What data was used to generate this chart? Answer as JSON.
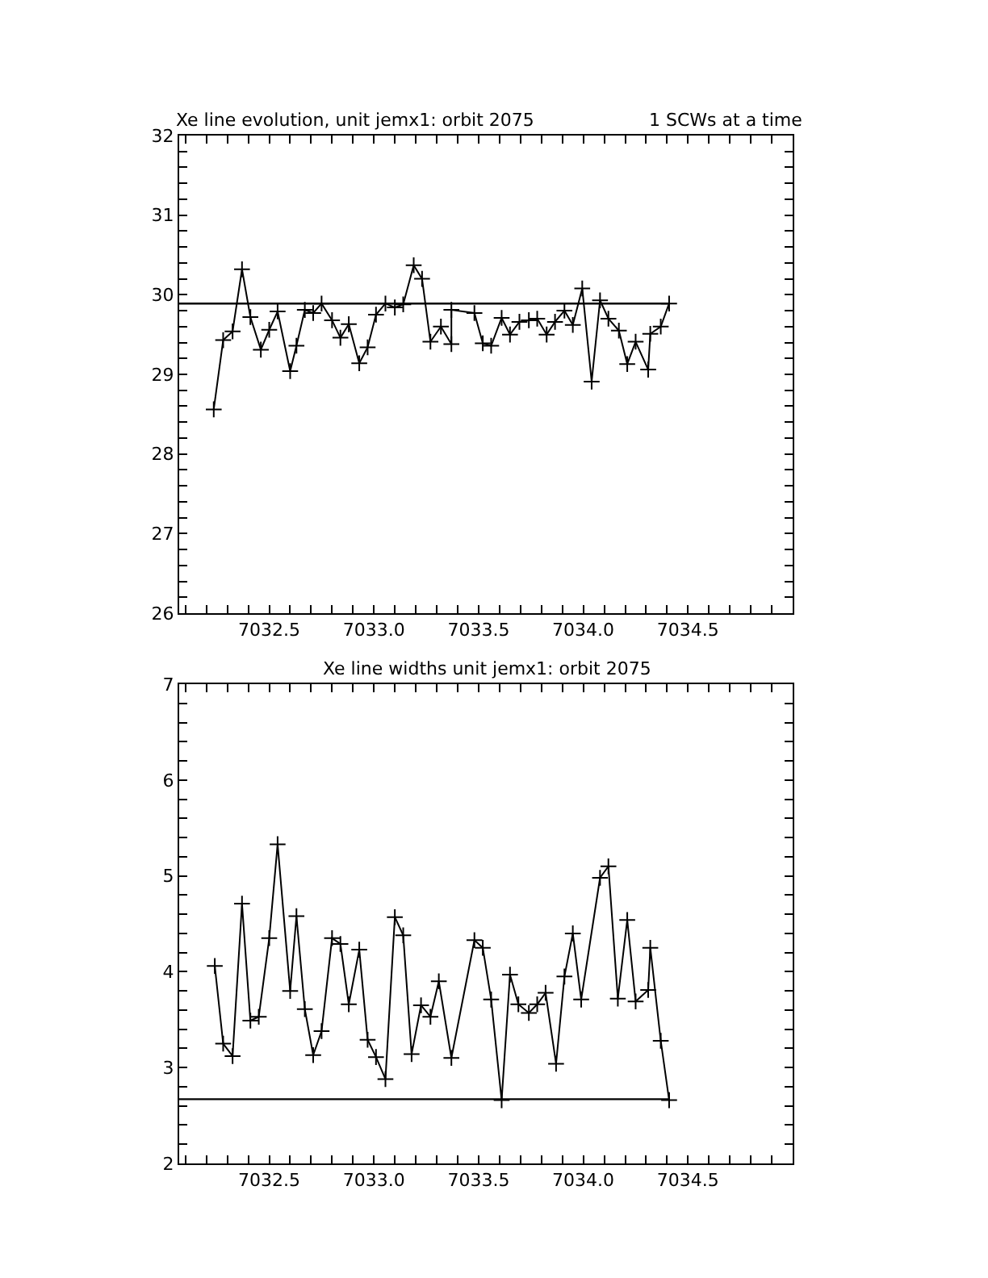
{
  "chart_data": [
    {
      "type": "line",
      "title": "Xe line evolution, unit jemx1: orbit 2075",
      "subtitle": "1 SCWs at a time",
      "marker": "cross",
      "line_style": "solid",
      "x": [
        7032.235,
        7032.28,
        7032.325,
        7032.37,
        7032.41,
        7032.46,
        7032.5,
        7032.54,
        7032.6,
        7032.63,
        7032.67,
        7032.71,
        7032.75,
        7032.8,
        7032.84,
        7032.88,
        7032.93,
        7032.97,
        7033.01,
        7033.055,
        7033.1,
        7033.14,
        7033.19,
        7033.23,
        7033.27,
        7033.32,
        7033.37,
        7033.37,
        7033.48,
        7033.52,
        7033.56,
        7033.61,
        7033.65,
        7033.695,
        7033.74,
        7033.78,
        7033.825,
        7033.865,
        7033.91,
        7033.95,
        7033.995,
        7034.04,
        7034.08,
        7034.12,
        7034.17,
        7034.21,
        7034.25,
        7034.31,
        7034.32,
        7034.37,
        7034.41
      ],
      "series": [
        {
          "color": "#000000",
          "values": [
            28.56,
            29.43,
            29.54,
            30.32,
            29.72,
            29.31,
            29.56,
            29.79,
            29.04,
            29.36,
            29.81,
            29.77,
            29.89,
            29.68,
            29.46,
            29.63,
            29.14,
            29.34,
            29.75,
            29.89,
            29.84,
            29.88,
            30.37,
            30.2,
            29.41,
            29.6,
            29.38,
            29.81,
            29.77,
            29.39,
            29.36,
            29.71,
            29.5,
            29.66,
            29.68,
            29.7,
            29.5,
            29.66,
            29.8,
            29.62,
            30.08,
            28.91,
            29.93,
            29.7,
            29.55,
            29.13,
            29.41,
            29.06,
            29.51,
            29.6,
            29.89
          ]
        }
      ],
      "ref_lines": [
        {
          "axis": "y",
          "value": 29.89,
          "color": "#000000"
        }
      ],
      "xlim": [
        7032.07,
        7035.0
      ],
      "xticks": [
        {
          "value": 7032.1,
          "label": null
        },
        {
          "value": 7032.2,
          "label": null
        },
        {
          "value": 7032.3,
          "label": null
        },
        {
          "value": 7032.4,
          "label": null
        },
        {
          "value": 7032.5,
          "label": "7032.5"
        },
        {
          "value": 7032.6,
          "label": null
        },
        {
          "value": 7032.7,
          "label": null
        },
        {
          "value": 7032.8,
          "label": null
        },
        {
          "value": 7032.9,
          "label": null
        },
        {
          "value": 7033.0,
          "label": "7033.0"
        },
        {
          "value": 7033.1,
          "label": null
        },
        {
          "value": 7033.2,
          "label": null
        },
        {
          "value": 7033.3,
          "label": null
        },
        {
          "value": 7033.4,
          "label": null
        },
        {
          "value": 7033.5,
          "label": "7033.5"
        },
        {
          "value": 7033.6,
          "label": null
        },
        {
          "value": 7033.7,
          "label": null
        },
        {
          "value": 7033.8,
          "label": null
        },
        {
          "value": 7033.9,
          "label": null
        },
        {
          "value": 7034.0,
          "label": "7034.0"
        },
        {
          "value": 7034.1,
          "label": null
        },
        {
          "value": 7034.2,
          "label": null
        },
        {
          "value": 7034.3,
          "label": null
        },
        {
          "value": 7034.4,
          "label": null
        },
        {
          "value": 7034.5,
          "label": "7034.5"
        },
        {
          "value": 7034.6,
          "label": null
        },
        {
          "value": 7034.7,
          "label": null
        },
        {
          "value": 7034.8,
          "label": null
        },
        {
          "value": 7034.9,
          "label": null
        }
      ],
      "ylim": [
        26,
        32
      ],
      "yticks": [
        26,
        {
          "value": 26.2,
          "label": null
        },
        {
          "value": 26.4,
          "label": null
        },
        {
          "value": 26.6,
          "label": null
        },
        {
          "value": 26.8,
          "label": null
        },
        27,
        {
          "value": 27.2,
          "label": null
        },
        {
          "value": 27.4,
          "label": null
        },
        {
          "value": 27.6,
          "label": null
        },
        {
          "value": 27.8,
          "label": null
        },
        28,
        {
          "value": 28.2,
          "label": null
        },
        {
          "value": 28.4,
          "label": null
        },
        {
          "value": 28.6,
          "label": null
        },
        {
          "value": 28.8,
          "label": null
        },
        29,
        {
          "value": 29.2,
          "label": null
        },
        {
          "value": 29.4,
          "label": null
        },
        {
          "value": 29.6,
          "label": null
        },
        {
          "value": 29.8,
          "label": null
        },
        30,
        {
          "value": 30.2,
          "label": null
        },
        {
          "value": 30.4,
          "label": null
        },
        {
          "value": 30.6,
          "label": null
        },
        {
          "value": 30.8,
          "label": null
        },
        31,
        {
          "value": 31.2,
          "label": null
        },
        {
          "value": 31.4,
          "label": null
        },
        {
          "value": 31.6,
          "label": null
        },
        {
          "value": 31.8,
          "label": null
        },
        32
      ]
    },
    {
      "type": "line",
      "title": "Xe line widths unit jemx1: orbit 2075",
      "marker": "cross",
      "line_style": "solid",
      "x": [
        7032.24,
        7032.28,
        7032.325,
        7032.37,
        7032.41,
        7032.45,
        7032.5,
        7032.54,
        7032.6,
        7032.63,
        7032.67,
        7032.71,
        7032.75,
        7032.8,
        7032.84,
        7032.88,
        7032.93,
        7032.97,
        7033.01,
        7033.055,
        7033.1,
        7033.14,
        7033.18,
        7033.225,
        7033.27,
        7033.31,
        7033.37,
        7033.48,
        7033.52,
        7033.56,
        7033.61,
        7033.65,
        7033.69,
        7033.74,
        7033.78,
        7033.82,
        7033.87,
        7033.91,
        7033.95,
        7033.99,
        7034.08,
        7034.12,
        7034.165,
        7034.21,
        7034.25,
        7034.31,
        7034.32,
        7034.37,
        7034.41
      ],
      "series": [
        {
          "color": "#000000",
          "values": [
            4.06,
            3.25,
            3.12,
            4.71,
            3.49,
            3.53,
            4.35,
            5.33,
            3.8,
            4.58,
            3.61,
            3.13,
            3.38,
            4.35,
            4.29,
            3.66,
            4.23,
            3.29,
            3.11,
            2.88,
            4.57,
            4.38,
            3.14,
            3.65,
            3.53,
            3.9,
            3.1,
            4.33,
            4.25,
            3.71,
            2.66,
            3.97,
            3.66,
            3.57,
            3.66,
            3.78,
            3.04,
            3.95,
            4.4,
            3.71,
            4.98,
            5.1,
            3.72,
            4.54,
            3.69,
            3.81,
            4.25,
            3.28,
            2.66
          ]
        }
      ],
      "ref_lines": [
        {
          "axis": "y",
          "value": 2.67,
          "color": "#000000"
        }
      ],
      "xlim": [
        7032.07,
        7035.0
      ],
      "xticks": [
        {
          "value": 7032.1,
          "label": null
        },
        {
          "value": 7032.2,
          "label": null
        },
        {
          "value": 7032.3,
          "label": null
        },
        {
          "value": 7032.4,
          "label": null
        },
        {
          "value": 7032.5,
          "label": "7032.5"
        },
        {
          "value": 7032.6,
          "label": null
        },
        {
          "value": 7032.7,
          "label": null
        },
        {
          "value": 7032.8,
          "label": null
        },
        {
          "value": 7032.9,
          "label": null
        },
        {
          "value": 7033.0,
          "label": "7033.0"
        },
        {
          "value": 7033.1,
          "label": null
        },
        {
          "value": 7033.2,
          "label": null
        },
        {
          "value": 7033.3,
          "label": null
        },
        {
          "value": 7033.4,
          "label": null
        },
        {
          "value": 7033.5,
          "label": "7033.5"
        },
        {
          "value": 7033.6,
          "label": null
        },
        {
          "value": 7033.7,
          "label": null
        },
        {
          "value": 7033.8,
          "label": null
        },
        {
          "value": 7033.9,
          "label": null
        },
        {
          "value": 7034.0,
          "label": "7034.0"
        },
        {
          "value": 7034.1,
          "label": null
        },
        {
          "value": 7034.2,
          "label": null
        },
        {
          "value": 7034.3,
          "label": null
        },
        {
          "value": 7034.4,
          "label": null
        },
        {
          "value": 7034.5,
          "label": "7034.5"
        },
        {
          "value": 7034.6,
          "label": null
        },
        {
          "value": 7034.7,
          "label": null
        },
        {
          "value": 7034.8,
          "label": null
        },
        {
          "value": 7034.9,
          "label": null
        }
      ],
      "ylim": [
        2,
        7
      ],
      "yticks": [
        2,
        {
          "value": 2.2,
          "label": null
        },
        {
          "value": 2.4,
          "label": null
        },
        {
          "value": 2.6,
          "label": null
        },
        {
          "value": 2.8,
          "label": null
        },
        3,
        {
          "value": 3.2,
          "label": null
        },
        {
          "value": 3.4,
          "label": null
        },
        {
          "value": 3.6,
          "label": null
        },
        {
          "value": 3.8,
          "label": null
        },
        4,
        {
          "value": 4.2,
          "label": null
        },
        {
          "value": 4.4,
          "label": null
        },
        {
          "value": 4.6,
          "label": null
        },
        {
          "value": 4.8,
          "label": null
        },
        5,
        {
          "value": 5.2,
          "label": null
        },
        {
          "value": 5.4,
          "label": null
        },
        {
          "value": 5.6,
          "label": null
        },
        {
          "value": 5.8,
          "label": null
        },
        6,
        {
          "value": 6.2,
          "label": null
        },
        {
          "value": 6.4,
          "label": null
        },
        {
          "value": 6.6,
          "label": null
        },
        {
          "value": 6.8,
          "label": null
        },
        7
      ]
    }
  ]
}
